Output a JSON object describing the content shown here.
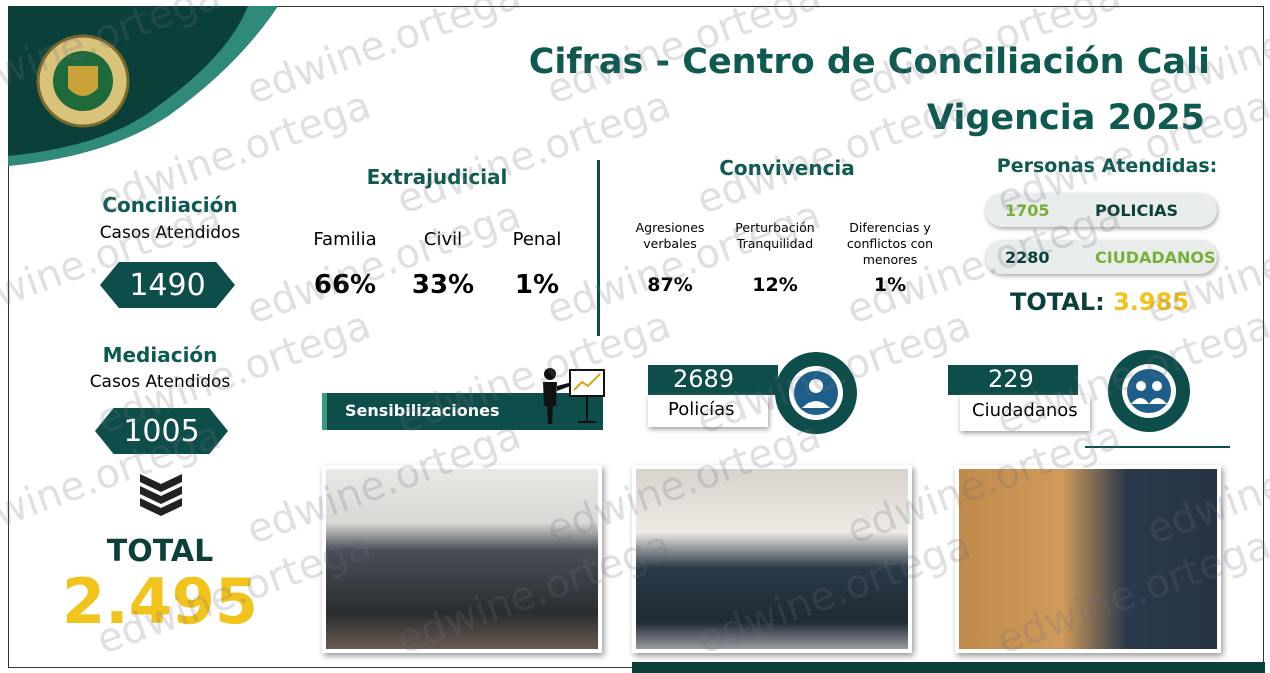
{
  "header": {
    "title_line1": "Cifras - Centro de Conciliación Cali",
    "title_line2": "Vigencia 2025"
  },
  "conciliacion": {
    "label": "Conciliación",
    "sub": "Casos Atendidos",
    "value": "1490"
  },
  "mediacion": {
    "label": "Mediación",
    "sub": "Casos Atendidos",
    "value": "1005"
  },
  "total": {
    "label": "TOTAL",
    "value": "2.495"
  },
  "extrajudicial": {
    "title": "Extrajudicial",
    "items": [
      {
        "label": "Familia",
        "value": "66%"
      },
      {
        "label": "Civil",
        "value": "33%"
      },
      {
        "label": "Penal",
        "value": "1%"
      }
    ]
  },
  "convivencia": {
    "title": "Convivencia",
    "items": [
      {
        "label": "Agresiones verbales",
        "value": "87%"
      },
      {
        "label": "Perturbación Tranquilidad",
        "value": "12%"
      },
      {
        "label": "Diferencias y conflictos con menores",
        "value": "1%"
      }
    ]
  },
  "personas": {
    "title": "Personas Atendidas:",
    "rows": [
      {
        "value": "1705",
        "label": "POLICIAS"
      },
      {
        "value": "2280",
        "label": "CIUDADANOS"
      }
    ],
    "total_label": "TOTAL:",
    "total_value": "3.985"
  },
  "sensibilizaciones": {
    "label": "Sensibilizaciones",
    "policias": {
      "value": "2689",
      "label": "Policías"
    },
    "ciudadanos": {
      "value": "229",
      "label": "Ciudadanos"
    }
  },
  "watermark": "edwine.ortega"
}
